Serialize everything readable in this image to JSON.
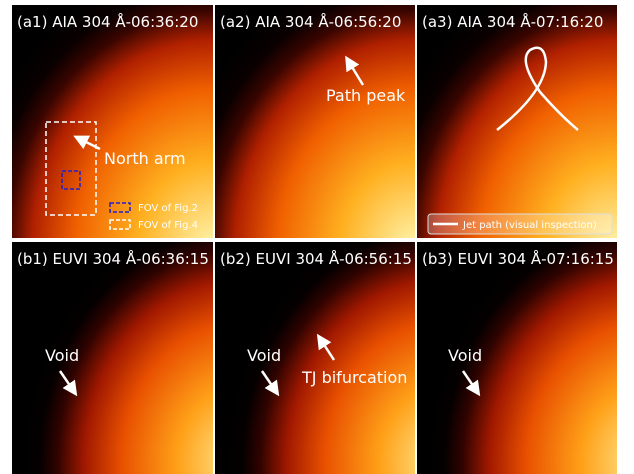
{
  "panels": [
    {
      "label": "(a1) AIA 304 Å-06:36:20",
      "annotations": [
        "North arm"
      ],
      "legend": [
        "FOV of Fig.2",
        "FOV of Fig.4"
      ]
    },
    {
      "label": "(a2) AIA 304 Å-06:56:20",
      "annotations": [
        "Path peak"
      ]
    },
    {
      "label": "(a3) AIA 304 Å-07:16:20",
      "legend": [
        "Jet path (visual inspection)"
      ]
    },
    {
      "label": "(b1) EUVI 304 Å-06:36:15",
      "annotations": [
        "Void"
      ]
    },
    {
      "label": "(b2) EUVI 304 Å-06:56:15",
      "annotations": [
        "Void",
        "TJ bifurcation"
      ]
    },
    {
      "label": "(b3) EUVI 304 Å-07:16:15",
      "annotations": [
        "Void"
      ]
    }
  ]
}
